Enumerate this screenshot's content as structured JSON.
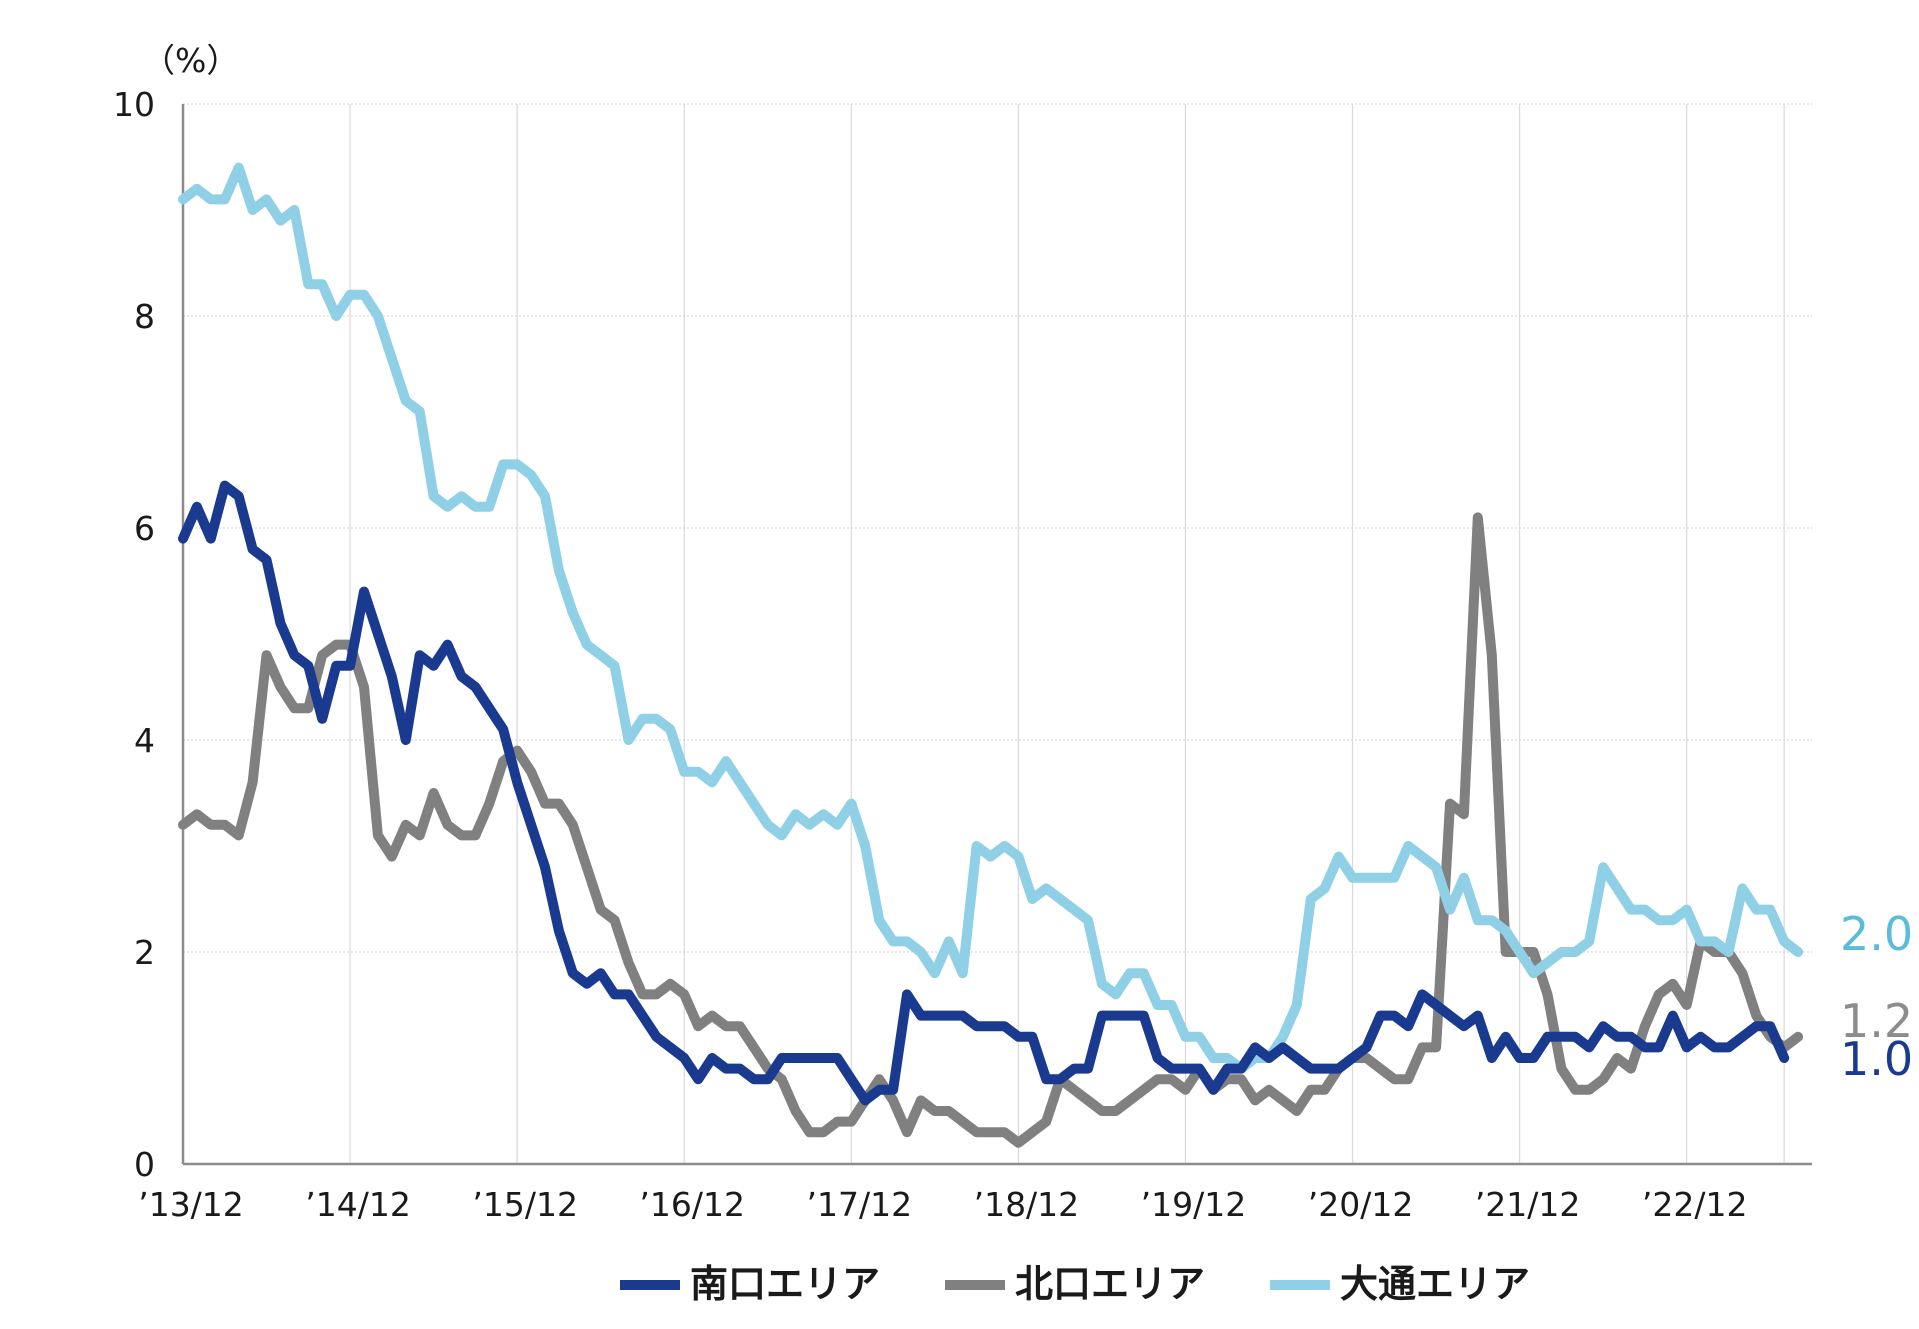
{
  "chart_data": {
    "type": "line",
    "unit_label": "（%）",
    "ylim": [
      0,
      10
    ],
    "yticks": [
      "0",
      "2",
      "4",
      "6",
      "8",
      "10"
    ],
    "x_tick_labels": [
      "’13/12",
      "’14/12",
      "’15/12",
      "’16/12",
      "’17/12",
      "’18/12",
      "’19/12",
      "’20/12",
      "’21/12",
      "’22/12"
    ],
    "x_range_months": "2013-12 to 2023-07",
    "grid": "vertical and horizontal light gray",
    "legend_position": "bottom",
    "series": [
      {
        "name": "南口エリア",
        "color": "#1a3a8f",
        "end_label": "1.0",
        "values": [
          5.9,
          6.2,
          5.9,
          6.4,
          6.3,
          5.8,
          5.7,
          5.1,
          4.8,
          4.7,
          4.2,
          4.7,
          4.7,
          5.4,
          5.0,
          4.6,
          4.0,
          4.8,
          4.7,
          4.9,
          4.6,
          4.5,
          4.3,
          4.1,
          3.6,
          3.2,
          2.8,
          2.2,
          1.8,
          1.7,
          1.8,
          1.6,
          1.6,
          1.4,
          1.2,
          1.1,
          1.0,
          0.8,
          1.0,
          0.9,
          0.9,
          0.8,
          0.8,
          1.0,
          1.0,
          1.0,
          1.0,
          1.0,
          0.8,
          0.6,
          0.7,
          0.7,
          1.6,
          1.4,
          1.4,
          1.4,
          1.4,
          1.3,
          1.3,
          1.3,
          1.2,
          1.2,
          0.8,
          0.8,
          0.9,
          0.9,
          1.4,
          1.4,
          1.4,
          1.4,
          1.0,
          0.9,
          0.9,
          0.9,
          0.7,
          0.9,
          0.9,
          1.1,
          1.0,
          1.1,
          1.0,
          0.9,
          0.9,
          0.9,
          1.0,
          1.1,
          1.4,
          1.4,
          1.3,
          1.6,
          1.5,
          1.4,
          1.3,
          1.4,
          1.0,
          1.2,
          1.0,
          1.0,
          1.2,
          1.2,
          1.2,
          1.1,
          1.3,
          1.2,
          1.2,
          1.1,
          1.1,
          1.4,
          1.1,
          1.2,
          1.1,
          1.1,
          1.2,
          1.3,
          1.3,
          1.0
        ]
      },
      {
        "name": "北口エリア",
        "color": "#808080",
        "end_label": "1.2",
        "values": [
          3.2,
          3.3,
          3.2,
          3.2,
          3.1,
          3.6,
          4.8,
          4.5,
          4.3,
          4.3,
          4.8,
          4.9,
          4.9,
          4.5,
          3.1,
          2.9,
          3.2,
          3.1,
          3.5,
          3.2,
          3.1,
          3.1,
          3.4,
          3.8,
          3.9,
          3.7,
          3.4,
          3.4,
          3.2,
          2.8,
          2.4,
          2.3,
          1.9,
          1.6,
          1.6,
          1.7,
          1.6,
          1.3,
          1.4,
          1.3,
          1.3,
          1.1,
          0.9,
          0.8,
          0.5,
          0.3,
          0.3,
          0.4,
          0.4,
          0.6,
          0.8,
          0.6,
          0.3,
          0.6,
          0.5,
          0.5,
          0.4,
          0.3,
          0.3,
          0.3,
          0.2,
          0.3,
          0.4,
          0.8,
          0.7,
          0.6,
          0.5,
          0.5,
          0.6,
          0.7,
          0.8,
          0.8,
          0.7,
          0.9,
          0.7,
          0.8,
          0.8,
          0.6,
          0.7,
          0.6,
          0.5,
          0.7,
          0.7,
          0.9,
          1.0,
          1.0,
          0.9,
          0.8,
          0.8,
          1.1,
          1.1,
          3.4,
          3.3,
          6.1,
          4.8,
          2.0,
          2.0,
          2.0,
          1.6,
          0.9,
          0.7,
          0.7,
          0.8,
          1.0,
          0.9,
          1.3,
          1.6,
          1.7,
          1.5,
          2.1,
          2.0,
          2.0,
          1.8,
          1.4,
          1.2,
          1.1,
          1.2
        ]
      },
      {
        "name": "大通エリア",
        "color": "#8fd0e6",
        "end_label": "2.0",
        "values": [
          9.1,
          9.2,
          9.1,
          9.1,
          9.4,
          9.0,
          9.1,
          8.9,
          9.0,
          8.3,
          8.3,
          8.0,
          8.2,
          8.2,
          8.0,
          7.6,
          7.2,
          7.1,
          6.3,
          6.2,
          6.3,
          6.2,
          6.2,
          6.6,
          6.6,
          6.5,
          6.3,
          5.6,
          5.2,
          4.9,
          4.8,
          4.7,
          4.0,
          4.2,
          4.2,
          4.1,
          3.7,
          3.7,
          3.6,
          3.8,
          3.6,
          3.4,
          3.2,
          3.1,
          3.3,
          3.2,
          3.3,
          3.2,
          3.4,
          3.0,
          2.3,
          2.1,
          2.1,
          2.0,
          1.8,
          2.1,
          1.8,
          3.0,
          2.9,
          3.0,
          2.9,
          2.5,
          2.6,
          2.5,
          2.4,
          2.3,
          1.7,
          1.6,
          1.8,
          1.8,
          1.5,
          1.5,
          1.2,
          1.2,
          1.0,
          1.0,
          0.9,
          1.0,
          1.0,
          1.2,
          1.5,
          2.5,
          2.6,
          2.9,
          2.7,
          2.7,
          2.7,
          2.7,
          3.0,
          2.9,
          2.8,
          2.4,
          2.7,
          2.3,
          2.3,
          2.2,
          2.0,
          1.8,
          1.9,
          2.0,
          2.0,
          2.1,
          2.8,
          2.6,
          2.4,
          2.4,
          2.3,
          2.3,
          2.4,
          2.1,
          2.1,
          2.0,
          2.6,
          2.4,
          2.4,
          2.1,
          2.0
        ]
      }
    ]
  }
}
